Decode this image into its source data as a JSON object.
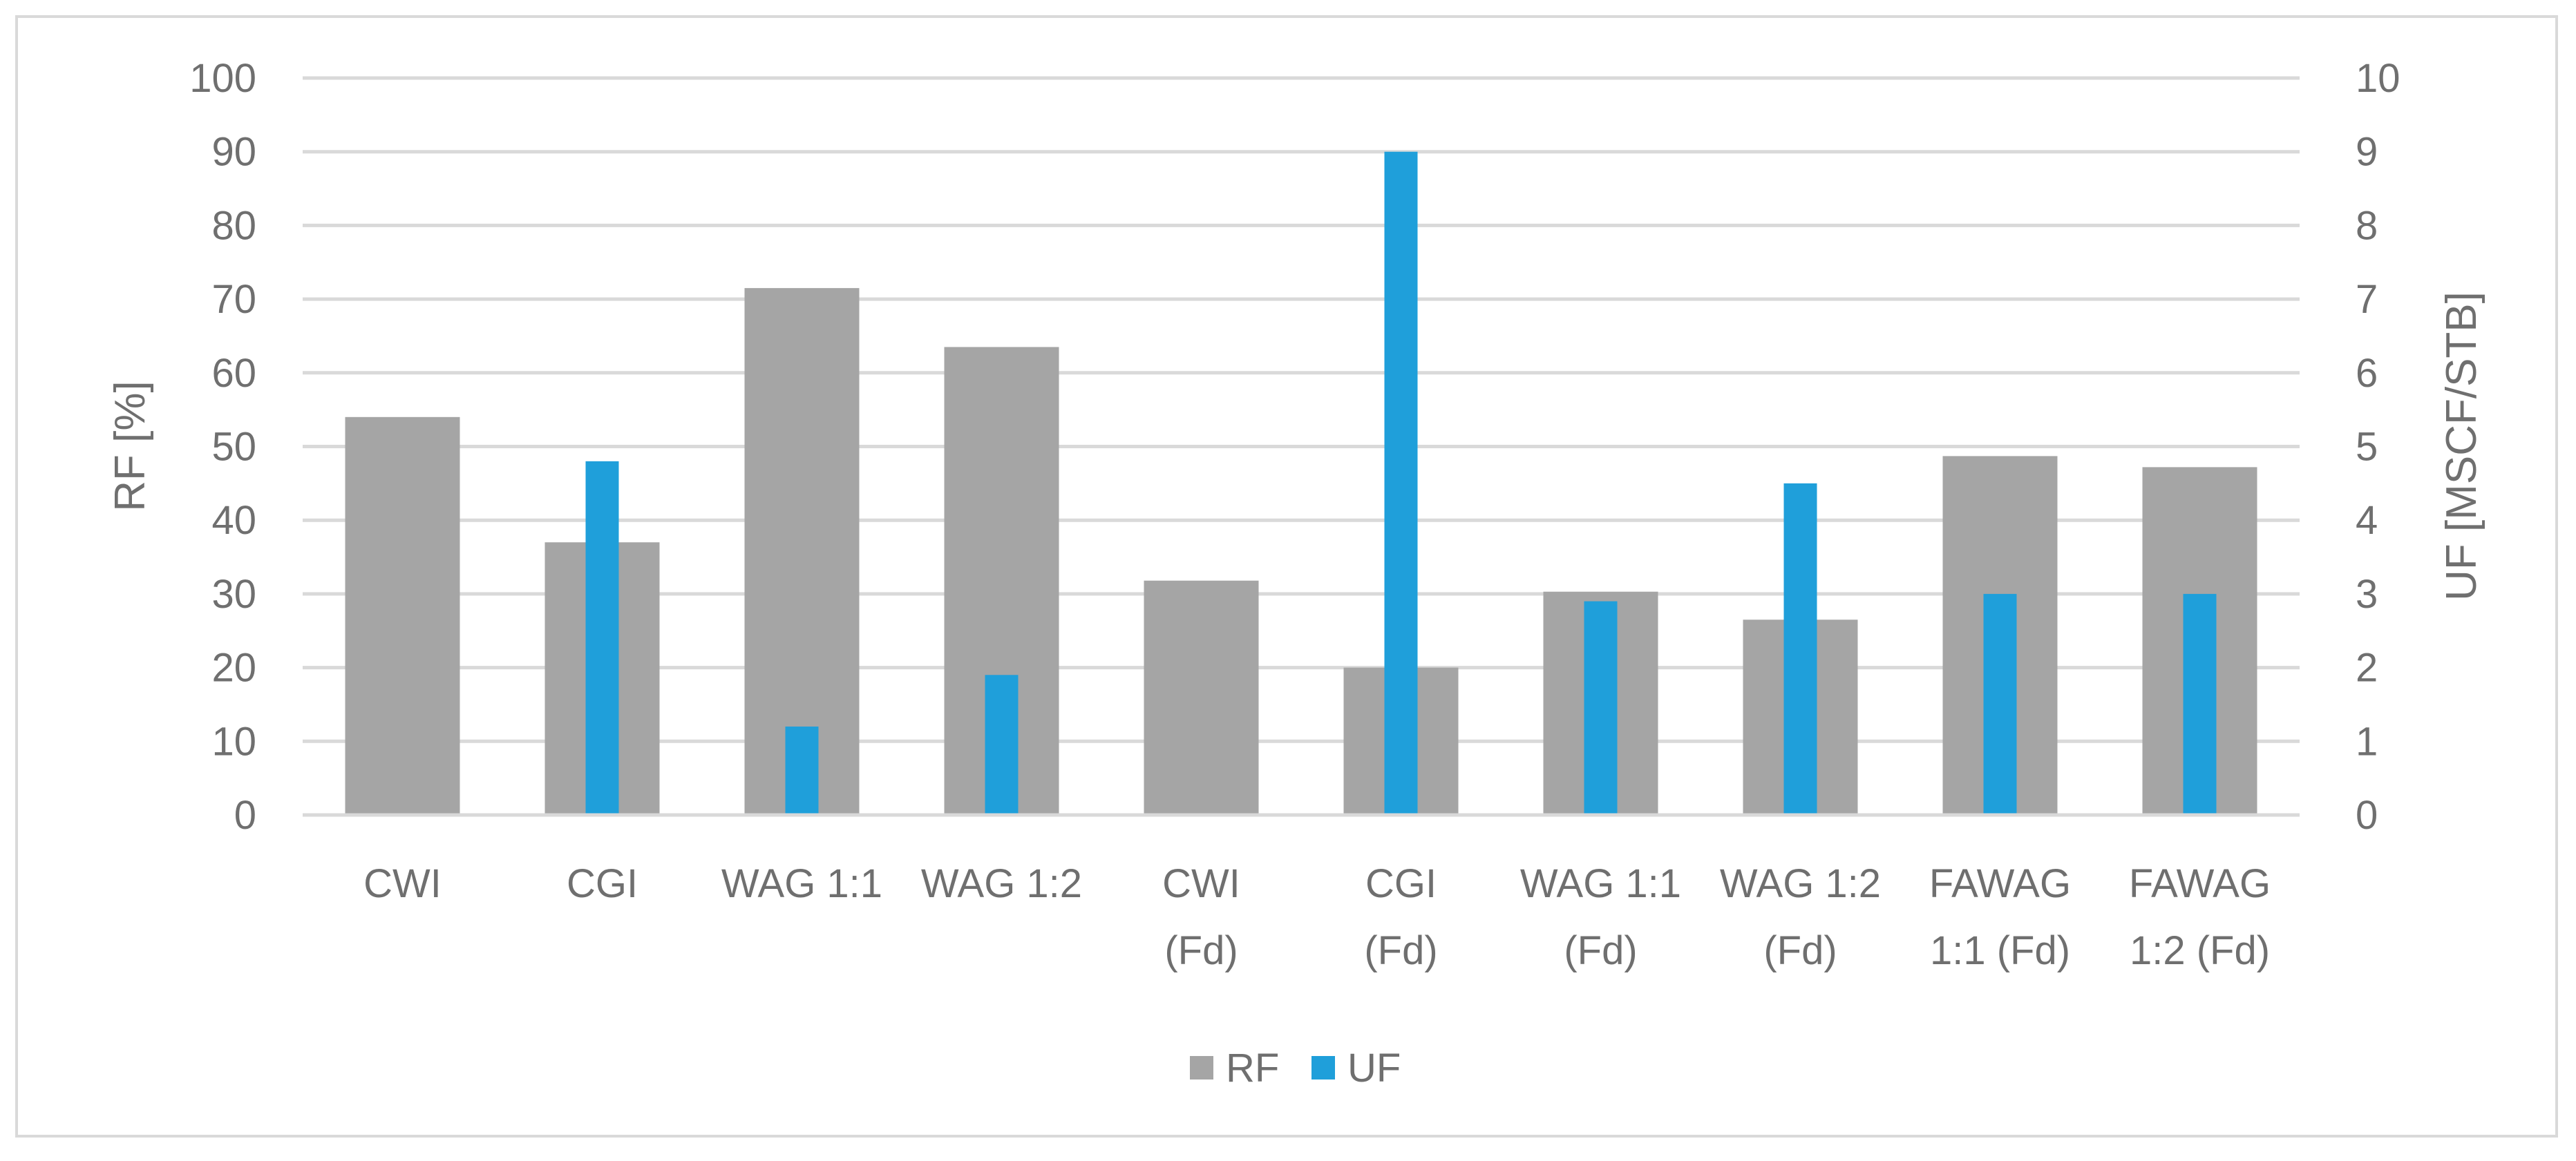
{
  "chart_data": {
    "type": "bar",
    "title": "",
    "categories": [
      [
        "CWI"
      ],
      [
        "CGI"
      ],
      [
        "WAG 1:1"
      ],
      [
        "WAG 1:2"
      ],
      [
        "CWI",
        "(Fd)"
      ],
      [
        "CGI",
        "(Fd)"
      ],
      [
        "WAG 1:1",
        "(Fd)"
      ],
      [
        "WAG 1:2",
        "(Fd)"
      ],
      [
        "FAWAG",
        "1:1 (Fd)"
      ],
      [
        "FAWAG",
        "1:2 (Fd)"
      ]
    ],
    "series": [
      {
        "name": "RF",
        "axis": "left",
        "color": "#a5a5a5",
        "values": [
          54,
          37,
          71.5,
          63.5,
          31.8,
          20,
          30.3,
          26.5,
          48.7,
          47.2
        ]
      },
      {
        "name": "UF",
        "axis": "right",
        "color": "#1f9fda",
        "values": [
          0,
          4.8,
          1.2,
          1.9,
          0,
          9.0,
          2.9,
          4.5,
          3.0,
          3.0
        ]
      }
    ],
    "y_left": {
      "label": "RF [%]",
      "ylim": [
        0,
        100
      ],
      "ticks": [
        "0",
        "10",
        "20",
        "30",
        "40",
        "50",
        "60",
        "70",
        "80",
        "90",
        "100"
      ]
    },
    "y_right": {
      "label": "UF [MSCF/STB]",
      "ylim": [
        0,
        10
      ],
      "ticks": [
        "0",
        "1",
        "2",
        "3",
        "4",
        "5",
        "6",
        "7",
        "8",
        "9",
        "10"
      ]
    },
    "grid": true,
    "gridline_color": "#d9d9d9",
    "legend_placement": "bottom-center"
  }
}
